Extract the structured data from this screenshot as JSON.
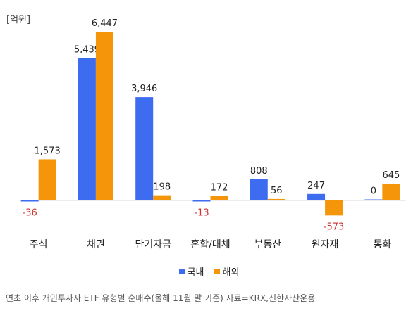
{
  "chart_data": {
    "type": "bar",
    "unit_label": "[억원]",
    "categories": [
      "주식",
      "채권",
      "단기자금",
      "혼합/대체",
      "부동산",
      "원자재",
      "통화"
    ],
    "series": [
      {
        "name": "국내",
        "color": "#3d6cf0",
        "values": [
          -36,
          5439,
          3946,
          -13,
          808,
          247,
          0
        ],
        "labels": [
          "-36",
          "5,439",
          "3,946",
          "-13",
          "808",
          "247",
          "0"
        ]
      },
      {
        "name": "해외",
        "color": "#f5960a",
        "values": [
          1573,
          6447,
          198,
          172,
          56,
          -573,
          645
        ],
        "labels": [
          "1,573",
          "6,447",
          "198",
          "172",
          "56",
          "-573",
          "645"
        ]
      }
    ],
    "ylim": [
      -700,
      6800
    ],
    "negative_label_color": "#d03030",
    "grid": false,
    "legend_position": "bottom"
  },
  "caption": "연초 이후 개인투자자 ETF 유형별 순매수(올해 11월 말 기준) 자료=KRX,신한자산운용"
}
